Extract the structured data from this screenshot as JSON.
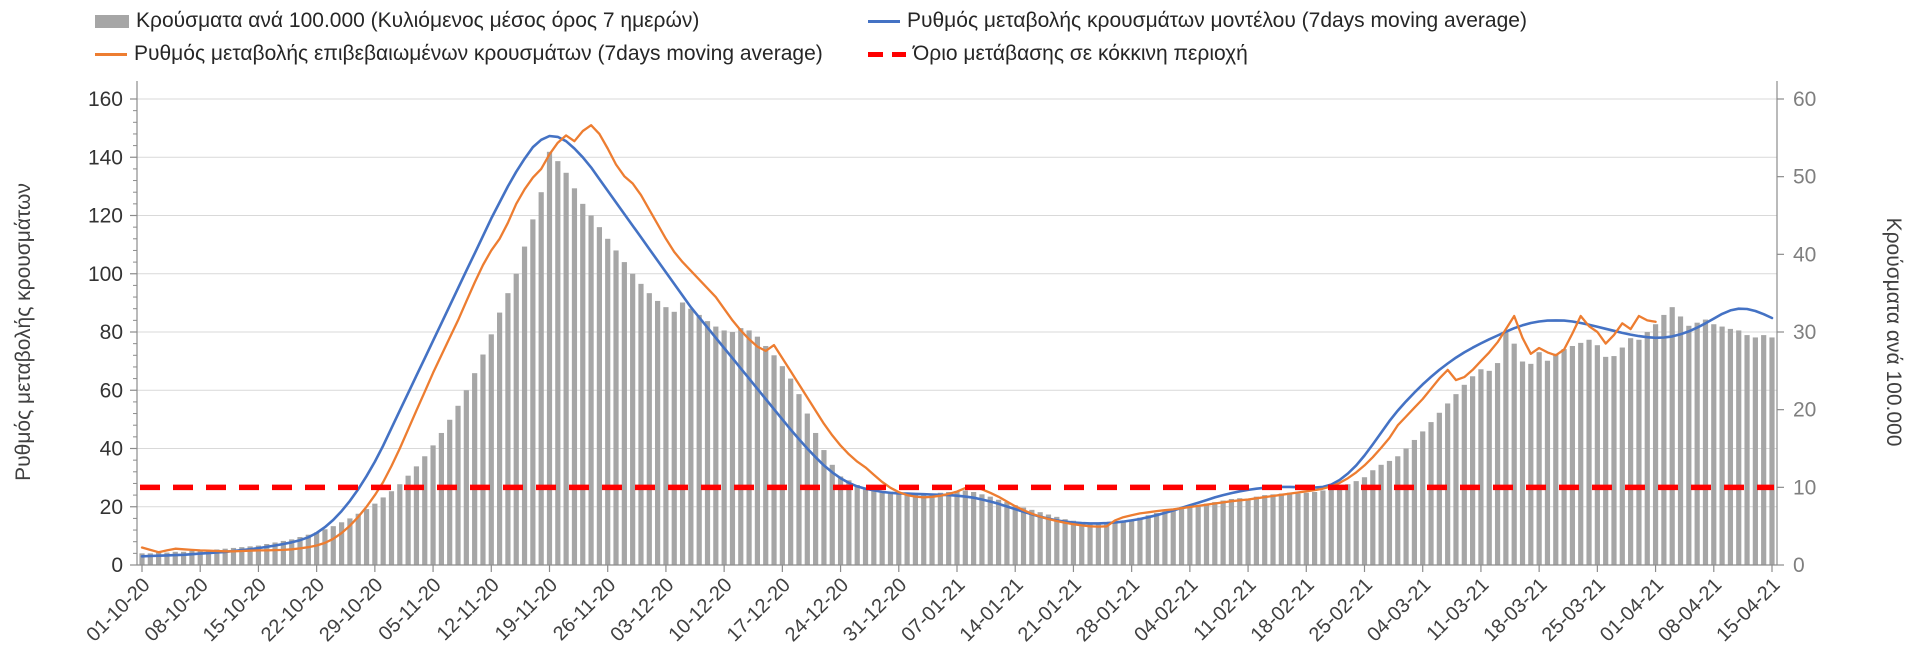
{
  "legend": {
    "items": [
      {
        "label": "Κρούσματα ανά 100.000 (Κυλιόμενος μέσος όρος 7 ημερών)",
        "swatch": "bar",
        "color": "#a6a6a6"
      },
      {
        "label": "Ρυθμός μεταβολής επιβεβαιωμένων κρουσμάτων (7days moving average)",
        "swatch": "line",
        "color": "#ed7d31"
      },
      {
        "label": "Ρυθμός μεταβολής κρουσμάτων μοντέλου (7days moving average)",
        "swatch": "line",
        "color": "#4472c4"
      },
      {
        "label": "Όριο μετάβασης σε κόκκινη περιοχή",
        "swatch": "dash",
        "color": "#fe0000"
      }
    ]
  },
  "chart_data": {
    "type": "bar",
    "subtype": "combo-bar-line-daily",
    "title": "",
    "left_axis": {
      "title": "Ρυθμός μεταβολής κρουσμάτων",
      "min": 0,
      "max": 160,
      "step": 20,
      "ticks": [
        0,
        20,
        40,
        60,
        80,
        100,
        120,
        140,
        160
      ]
    },
    "right_axis": {
      "title": "Κρούσματα ανά 100.000",
      "min": 0,
      "max": 60,
      "step": 10,
      "ticks": [
        0,
        10,
        20,
        30,
        40,
        50,
        60
      ]
    },
    "x_tick_labels": [
      "01-10-20",
      "08-10-20",
      "15-10-20",
      "22-10-20",
      "29-10-20",
      "05-11-20",
      "12-11-20",
      "19-11-20",
      "26-11-20",
      "03-12-20",
      "10-12-20",
      "17-12-20",
      "24-12-20",
      "31-12-20",
      "07-01-21",
      "14-01-21",
      "21-01-21",
      "28-01-21",
      "04-02-21",
      "11-02-21",
      "18-02-21",
      "25-02-21",
      "04-03-21",
      "11-03-21",
      "18-03-21",
      "25-03-21",
      "01-04-21",
      "08-04-21",
      "15-04-21"
    ],
    "grid": "horizontal",
    "legend_position": "top",
    "series": [
      {
        "name": "Κρούσματα ανά 100.000 (Κυλιόμενος μέσος όρος 7 ημερών)",
        "type": "bar",
        "axis": "right",
        "color": "#a6a6a6",
        "values": [
          1.5,
          1.5,
          1.6,
          1.6,
          1.7,
          1.7,
          1.8,
          1.9,
          1.9,
          2.0,
          2.1,
          2.2,
          2.3,
          2.4,
          2.5,
          2.7,
          2.9,
          3.1,
          3.3,
          3.6,
          3.9,
          4.2,
          4.6,
          5.0,
          5.5,
          6.0,
          6.6,
          7.2,
          7.9,
          8.7,
          9.5,
          10.4,
          11.5,
          12.7,
          14.0,
          15.4,
          17.0,
          18.7,
          20.5,
          22.5,
          24.7,
          27.1,
          29.7,
          32.5,
          35.0,
          37.5,
          41.0,
          44.5,
          48.0,
          53.2,
          52.0,
          50.5,
          48.5,
          46.5,
          45.0,
          43.5,
          42.0,
          40.5,
          39.0,
          37.5,
          36.2,
          35.0,
          34.0,
          33.2,
          32.6,
          33.8,
          33.0,
          32.2,
          31.4,
          30.7,
          30.2,
          30.0,
          30.5,
          30.2,
          29.4,
          28.2,
          27.0,
          25.6,
          24.0,
          22.0,
          19.5,
          17.0,
          14.8,
          12.9,
          11.4,
          10.9,
          10.3,
          9.9,
          9.7,
          9.5,
          9.4,
          9.3,
          9.2,
          9.1,
          9.1,
          9.2,
          9.3,
          9.4,
          9.5,
          9.6,
          9.4,
          9.1,
          8.8,
          8.4,
          8.1,
          7.7,
          7.4,
          7.1,
          6.8,
          6.5,
          6.2,
          5.9,
          5.7,
          5.5,
          5.4,
          5.3,
          5.3,
          5.4,
          5.6,
          5.8,
          6.1,
          6.4,
          6.7,
          6.9,
          7.1,
          7.3,
          7.5,
          7.7,
          7.9,
          8.1,
          8.3,
          8.5,
          8.6,
          8.5,
          8.8,
          9.0,
          9.1,
          9.2,
          9.3,
          9.2,
          9.3,
          9.4,
          9.6,
          9.8,
          10.1,
          10.4,
          10.8,
          11.3,
          12.2,
          12.9,
          13.4,
          14.0,
          15.0,
          16.1,
          17.2,
          18.4,
          19.6,
          20.8,
          22.0,
          23.2,
          24.3,
          25.2,
          25.0,
          26.0,
          30.0,
          28.5,
          26.2,
          25.9,
          27.4,
          26.3,
          27.2,
          27.8,
          28.2,
          28.6,
          29.0,
          28.3,
          26.8,
          26.9,
          28.0,
          29.2,
          29.0,
          30.0,
          31.0,
          32.2,
          33.2,
          32.0,
          30.8,
          31.2,
          31.6,
          31.0,
          30.7,
          30.4,
          30.2,
          29.6,
          29.3,
          29.6,
          29.3
        ]
      },
      {
        "name": "Ρυθμός μεταβολής κρουσμάτων μοντέλου (7days moving average)",
        "type": "line",
        "axis": "left",
        "color": "#4472c4",
        "values": [
          3.0,
          3.1,
          3.2,
          3.3,
          3.4,
          3.5,
          3.7,
          3.9,
          4.1,
          4.3,
          4.5,
          4.8,
          5.1,
          5.4,
          5.8,
          6.2,
          6.7,
          7.2,
          7.8,
          8.5,
          9.5,
          11.0,
          13.0,
          15.5,
          18.5,
          22.0,
          26.0,
          30.5,
          35.5,
          41.0,
          47.0,
          53.0,
          59.0,
          65.0,
          71.0,
          77.0,
          83.0,
          89.0,
          95.0,
          101.0,
          107.0,
          113.0,
          119.0,
          124.5,
          130.0,
          135.0,
          139.5,
          143.5,
          146.0,
          147.3,
          147.0,
          145.5,
          143.0,
          140.0,
          136.5,
          132.5,
          128.5,
          124.5,
          120.5,
          116.5,
          112.5,
          108.5,
          104.5,
          100.5,
          96.5,
          92.5,
          88.5,
          85.0,
          81.5,
          78.0,
          74.5,
          71.0,
          67.5,
          64.0,
          60.5,
          57.0,
          53.5,
          50.0,
          46.5,
          43.2,
          40.0,
          37.0,
          34.2,
          31.8,
          29.8,
          28.2,
          27.0,
          26.2,
          25.6,
          25.1,
          24.8,
          24.6,
          24.5,
          24.4,
          24.3,
          24.2,
          24.1,
          24.0,
          23.8,
          23.5,
          23.1,
          22.5,
          21.8,
          21.0,
          20.1,
          19.2,
          18.3,
          17.4,
          16.6,
          15.9,
          15.3,
          14.9,
          14.6,
          14.4,
          14.3,
          14.3,
          14.4,
          14.6,
          14.9,
          15.3,
          15.8,
          16.4,
          17.1,
          17.9,
          18.7,
          19.6,
          20.5,
          21.4,
          22.3,
          23.2,
          24.0,
          24.7,
          25.3,
          25.8,
          26.2,
          26.5,
          26.7,
          26.8,
          26.8,
          26.7,
          26.6,
          26.6,
          26.8,
          27.6,
          29.2,
          31.4,
          34.2,
          37.6,
          41.4,
          45.4,
          49.4,
          53.0,
          56.2,
          59.2,
          62.0,
          64.6,
          67.0,
          69.2,
          71.2,
          73.0,
          74.6,
          76.1,
          77.5,
          78.8,
          80.1,
          81.3,
          82.3,
          83.1,
          83.6,
          83.9,
          84.0,
          83.9,
          83.6,
          83.1,
          82.5,
          81.8,
          81.1,
          80.4,
          79.7,
          79.1,
          78.6,
          78.2,
          78.0,
          78.1,
          78.5,
          79.2,
          80.2,
          81.5,
          83.0,
          84.6,
          86.2,
          87.4,
          88.0,
          87.9,
          87.2,
          86.1,
          84.8
        ]
      },
      {
        "name": "Ρυθμός μεταβολής επιβεβαιωμένων κρουσμάτων (7days moving average)",
        "type": "line",
        "axis": "left",
        "color": "#ed7d31",
        "values": [
          6.0,
          5.2,
          4.4,
          5.0,
          5.6,
          5.4,
          5.2,
          5.0,
          4.9,
          4.8,
          4.7,
          4.7,
          4.8,
          4.9,
          5.0,
          5.0,
          5.1,
          5.2,
          5.4,
          5.7,
          6.1,
          6.7,
          7.6,
          9.0,
          11.0,
          13.5,
          16.5,
          20.0,
          24.0,
          28.5,
          34.0,
          40.0,
          46.5,
          53.0,
          59.5,
          66.0,
          72.0,
          78.0,
          84.0,
          90.5,
          97.0,
          103.0,
          108.0,
          112.0,
          117.5,
          124.0,
          129.0,
          133.0,
          136.0,
          141.0,
          145.0,
          147.5,
          145.5,
          149.0,
          151.0,
          148.0,
          143.0,
          137.5,
          133.5,
          131.0,
          127.0,
          122.0,
          117.0,
          112.0,
          107.5,
          104.0,
          101.0,
          98.0,
          95.0,
          92.0,
          88.0,
          84.0,
          80.5,
          77.5,
          75.0,
          73.5,
          75.5,
          71.0,
          66.5,
          62.0,
          57.5,
          53.0,
          48.5,
          44.5,
          41.0,
          38.0,
          35.5,
          33.5,
          31.0,
          28.5,
          26.5,
          25.0,
          24.0,
          23.5,
          23.2,
          23.4,
          23.8,
          24.4,
          25.2,
          26.4,
          26.8,
          26.0,
          24.8,
          23.4,
          21.8,
          20.2,
          18.8,
          17.6,
          16.6,
          15.8,
          15.1,
          14.5,
          14.0,
          13.6,
          13.3,
          13.2,
          13.3,
          15.3,
          16.4,
          17.1,
          17.7,
          18.1,
          18.5,
          18.8,
          19.1,
          19.5,
          19.9,
          20.3,
          20.7,
          21.1,
          21.5,
          21.9,
          22.2,
          22.5,
          22.9,
          23.3,
          23.7,
          24.1,
          24.5,
          24.9,
          25.3,
          25.7,
          26.2,
          27.0,
          28.2,
          29.8,
          31.8,
          34.2,
          37.0,
          40.2,
          43.6,
          48.0,
          51.0,
          54.0,
          57.0,
          60.5,
          64.0,
          67.0,
          63.5,
          64.5,
          67.0,
          70.0,
          73.0,
          76.5,
          81.0,
          85.5,
          78.0,
          72.5,
          74.5,
          73.0,
          72.0,
          74.0,
          79.5,
          85.5,
          82.0,
          80.0,
          76.0,
          79.0,
          83.0,
          81.0,
          85.5,
          84.0,
          83.5
        ]
      }
    ],
    "threshold": {
      "name": "Όριο μετάβασης σε κόκκινη περιοχή",
      "axis": "right",
      "value": 10,
      "left_axis_equivalent": 26.7,
      "color": "#fe0000",
      "style": "dashed"
    }
  }
}
